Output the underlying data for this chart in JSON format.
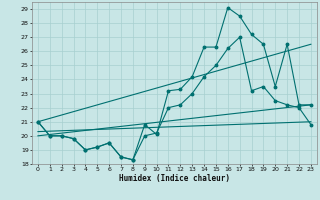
{
  "title": "",
  "xlabel": "Humidex (Indice chaleur)",
  "xlim": [
    -0.5,
    23.5
  ],
  "ylim": [
    18,
    29.5
  ],
  "yticks": [
    18,
    19,
    20,
    21,
    22,
    23,
    24,
    25,
    26,
    27,
    28,
    29
  ],
  "xticks": [
    0,
    1,
    2,
    3,
    4,
    5,
    6,
    7,
    8,
    9,
    10,
    11,
    12,
    13,
    14,
    15,
    16,
    17,
    18,
    19,
    20,
    21,
    22,
    23
  ],
  "bg_color": "#c8e6e6",
  "grid_color": "#a8d0d0",
  "line_color": "#007070",
  "line1_x": [
    0,
    1,
    2,
    3,
    4,
    5,
    6,
    7,
    8,
    9,
    10,
    11,
    12,
    13,
    14,
    15,
    16,
    17,
    18,
    19,
    20,
    21,
    22,
    23
  ],
  "line1_y": [
    21.0,
    20.0,
    20.0,
    19.8,
    19.0,
    19.2,
    19.5,
    18.5,
    18.3,
    20.8,
    20.1,
    23.2,
    23.3,
    24.2,
    26.3,
    26.3,
    29.1,
    28.5,
    27.2,
    26.5,
    23.5,
    26.5,
    22.2,
    22.2
  ],
  "line2_x": [
    0,
    1,
    2,
    3,
    4,
    5,
    6,
    7,
    8,
    9,
    10,
    11,
    12,
    13,
    14,
    15,
    16,
    17,
    18,
    19,
    20,
    21,
    22,
    23
  ],
  "line2_y": [
    21.0,
    20.0,
    20.0,
    19.8,
    19.0,
    19.2,
    19.5,
    18.5,
    18.3,
    20.0,
    20.2,
    22.0,
    22.2,
    23.0,
    24.2,
    25.0,
    26.2,
    27.0,
    23.2,
    23.5,
    22.5,
    22.2,
    22.0,
    20.8
  ],
  "line3_x": [
    0,
    23
  ],
  "line3_y": [
    21.0,
    26.5
  ],
  "line4_x": [
    0,
    23
  ],
  "line4_y": [
    20.0,
    22.2
  ],
  "line5_x": [
    0,
    23
  ],
  "line5_y": [
    20.3,
    21.0
  ]
}
